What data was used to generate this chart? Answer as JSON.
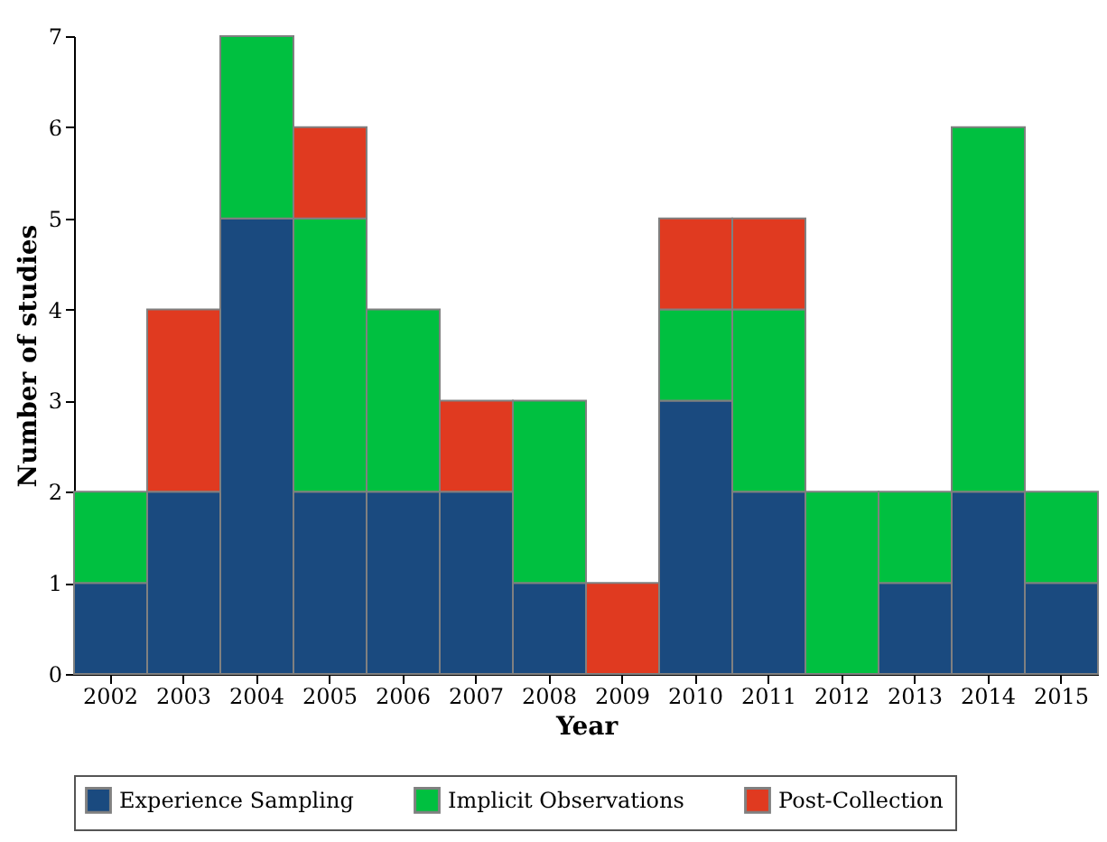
{
  "chart_data": {
    "type": "bar",
    "stacked": true,
    "xlabel": "Year",
    "ylabel": "Number of studies",
    "categories": [
      "2002",
      "2003",
      "2004",
      "2005",
      "2006",
      "2007",
      "2008",
      "2009",
      "2010",
      "2011",
      "2012",
      "2013",
      "2014",
      "2015"
    ],
    "series": [
      {
        "name": "Experience Sampling",
        "color": "#1a4a7f",
        "values": [
          1,
          2,
          5,
          2,
          2,
          2,
          1,
          0,
          3,
          2,
          0,
          1,
          2,
          1
        ]
      },
      {
        "name": "Implicit Observations",
        "color": "#00c040",
        "values": [
          1,
          0,
          2,
          3,
          2,
          0,
          2,
          0,
          1,
          2,
          2,
          1,
          4,
          1
        ]
      },
      {
        "name": "Post-Collection",
        "color": "#e03a20",
        "values": [
          0,
          2,
          0,
          1,
          0,
          1,
          0,
          1,
          1,
          1,
          0,
          0,
          0,
          0
        ]
      }
    ],
    "ylim": [
      0,
      7
    ],
    "yticks": [
      0,
      1,
      2,
      3,
      4,
      5,
      6,
      7
    ],
    "grid": false,
    "legend": "bottom"
  }
}
